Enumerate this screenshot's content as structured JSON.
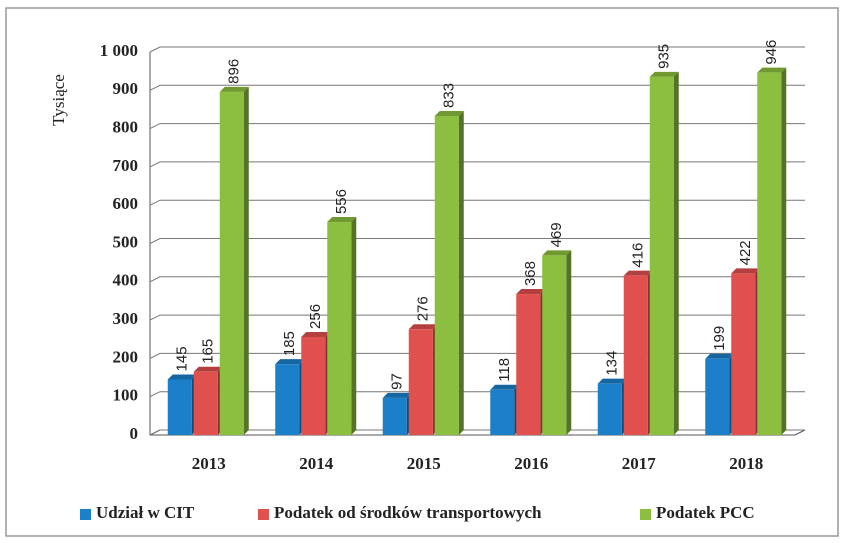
{
  "chart_data": {
    "type": "bar",
    "ylabel": "Tysiące",
    "categories": [
      "2013",
      "2014",
      "2015",
      "2016",
      "2017",
      "2018"
    ],
    "series": [
      {
        "name": "Udział w CIT",
        "color": "#1b7fc9",
        "values": [
          145,
          185,
          97,
          118,
          134,
          199
        ]
      },
      {
        "name": "Podatek od środków transportowych",
        "color": "#e0504f",
        "values": [
          165,
          256,
          276,
          368,
          416,
          422
        ]
      },
      {
        "name": "Podatek PCC",
        "color": "#8cbf3f",
        "values": [
          896,
          556,
          833,
          469,
          935,
          946
        ]
      }
    ],
    "ylim": [
      0,
      1000
    ],
    "yticks": [
      0,
      100,
      200,
      300,
      400,
      500,
      600,
      700,
      800,
      900,
      {
        "value": 1000,
        "label": "1 000"
      }
    ],
    "grid": true,
    "legend": "bottom"
  }
}
